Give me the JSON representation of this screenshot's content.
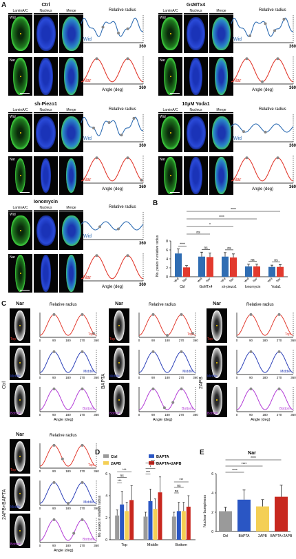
{
  "panel_labels": {
    "A": "A",
    "B": "B",
    "C": "C",
    "D": "D",
    "E": "E"
  },
  "imaging_headers": [
    "LaminA/C",
    "Nucleus",
    "Merge"
  ],
  "row_labels": {
    "wid": "Wid",
    "nar": "Nar"
  },
  "relative_radius": "Relative radius",
  "angle_axis": "Angle (deg)",
  "angle_ticks_a": [
    "0",
    "360"
  ],
  "angle_ticks_c": [
    "0",
    "90",
    "180",
    "270",
    "360"
  ],
  "conditions_a": [
    {
      "title": "Ctrl"
    },
    {
      "title": "GsMTx4"
    },
    {
      "title": "sh-Piezo1"
    },
    {
      "title": "10μM Yoda1"
    },
    {
      "title": "Ionomycin"
    }
  ],
  "c_titles": {
    "nar": "Nar",
    "ctrl": "Ctrl",
    "bapta": "BAPTA",
    "apb": "2APB",
    "combo": "2APB+BAPTA"
  },
  "c_sections": {
    "top": "Top",
    "middle": "Middle",
    "bottom": "Bottom"
  },
  "colors": {
    "wid": "#2f6db3",
    "nar": "#e23a2e",
    "middle": "#2b3fb8",
    "bottom": "#b23ad6",
    "ctrl_bar": "#9a9a9a",
    "bapta_bar": "#2a56c4",
    "apb_bar": "#f4cf55",
    "combo_bar": "#c8281f",
    "marker": "#888888"
  },
  "chart_B": {
    "type": "bar",
    "ylabel": "No. peaks in relative radius",
    "ylim": [
      0,
      8
    ],
    "yticks": [
      "0",
      "2",
      "4",
      "6",
      "8"
    ],
    "groups": [
      "Ctrl",
      "GsMTx4",
      "sh-piezo1",
      "Ionomycin",
      "Yoda1"
    ],
    "bar_labels": [
      "Wid",
      "Nar"
    ],
    "values": [
      [
        5.2,
        2.1
      ],
      [
        4.5,
        4.4
      ],
      [
        4.5,
        4.3
      ],
      [
        2.3,
        2.3
      ],
      [
        2.2,
        2.2
      ]
    ],
    "errors": [
      [
        1.0,
        0.4
      ],
      [
        1.0,
        0.9
      ],
      [
        0.9,
        0.8
      ],
      [
        0.5,
        0.5
      ],
      [
        0.4,
        0.5
      ]
    ],
    "within_sig": [
      "****",
      "ns",
      "ns",
      "ns",
      "ns"
    ],
    "between_sig": [
      "ns",
      "*",
      "****",
      "****"
    ]
  },
  "chart_D": {
    "type": "bar",
    "ylabel": "No. peaks in relative radius",
    "ylim": [
      0,
      6
    ],
    "yticks": [
      "0",
      "2",
      "4",
      "6"
    ],
    "groups": [
      "Top",
      "Middle",
      "Bottom"
    ],
    "legend": [
      "Ctrl",
      "BAPTA",
      "2APB",
      "BAPTA+2APB"
    ],
    "values": [
      [
        2.2,
        3.2,
        2.6,
        3.6
      ],
      [
        2.1,
        3.5,
        2.8,
        4.3
      ],
      [
        2.1,
        2.6,
        2.6,
        3.0
      ]
    ],
    "errors": [
      [
        0.5,
        1.2,
        0.8,
        1.3
      ],
      [
        0.4,
        1.1,
        0.9,
        1.4
      ],
      [
        0.4,
        0.8,
        0.8,
        1.0
      ]
    ],
    "sig": [
      [
        "***",
        "ns",
        "***"
      ],
      [
        "***",
        "*",
        "***"
      ],
      [
        "ns",
        "ns",
        "***"
      ]
    ]
  },
  "chart_E": {
    "type": "bar",
    "title": "Nar",
    "ylabel": "Nuclear bumpiness",
    "ylim": [
      0,
      6
    ],
    "yticks": [
      "0",
      "2",
      "4",
      "6"
    ],
    "categories": [
      "Ctrl",
      "BAPTA",
      "2APB",
      "BAPTA+2APB"
    ],
    "values": [
      2.1,
      3.3,
      2.6,
      3.6
    ],
    "errors": [
      0.4,
      1.0,
      0.7,
      1.2
    ],
    "sig": [
      "****",
      "****",
      "****"
    ]
  }
}
